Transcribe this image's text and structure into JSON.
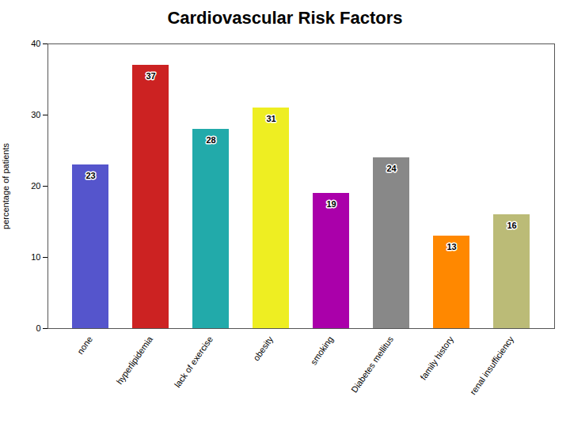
{
  "chart_data": {
    "type": "bar",
    "title": "Cardiovascular Risk Factors",
    "ylabel": "percentage of patients",
    "categories": [
      "none",
      "hyperlipidemia",
      "lack of exercise",
      "obesity",
      "smoking",
      "Diabetes mellitus",
      "family history",
      "renal insufficiency"
    ],
    "values": [
      23,
      37,
      28,
      31,
      19,
      24,
      13,
      16
    ],
    "colors": [
      "#5555CC",
      "#CC2222",
      "#22AAAA",
      "#EEEE22",
      "#AA00AA",
      "#888888",
      "#FF8800",
      "#BBBB77"
    ],
    "ylim": [
      0,
      40
    ],
    "yticks": [
      0,
      10,
      20,
      30,
      40
    ],
    "data_labels": true,
    "grid": false
  }
}
